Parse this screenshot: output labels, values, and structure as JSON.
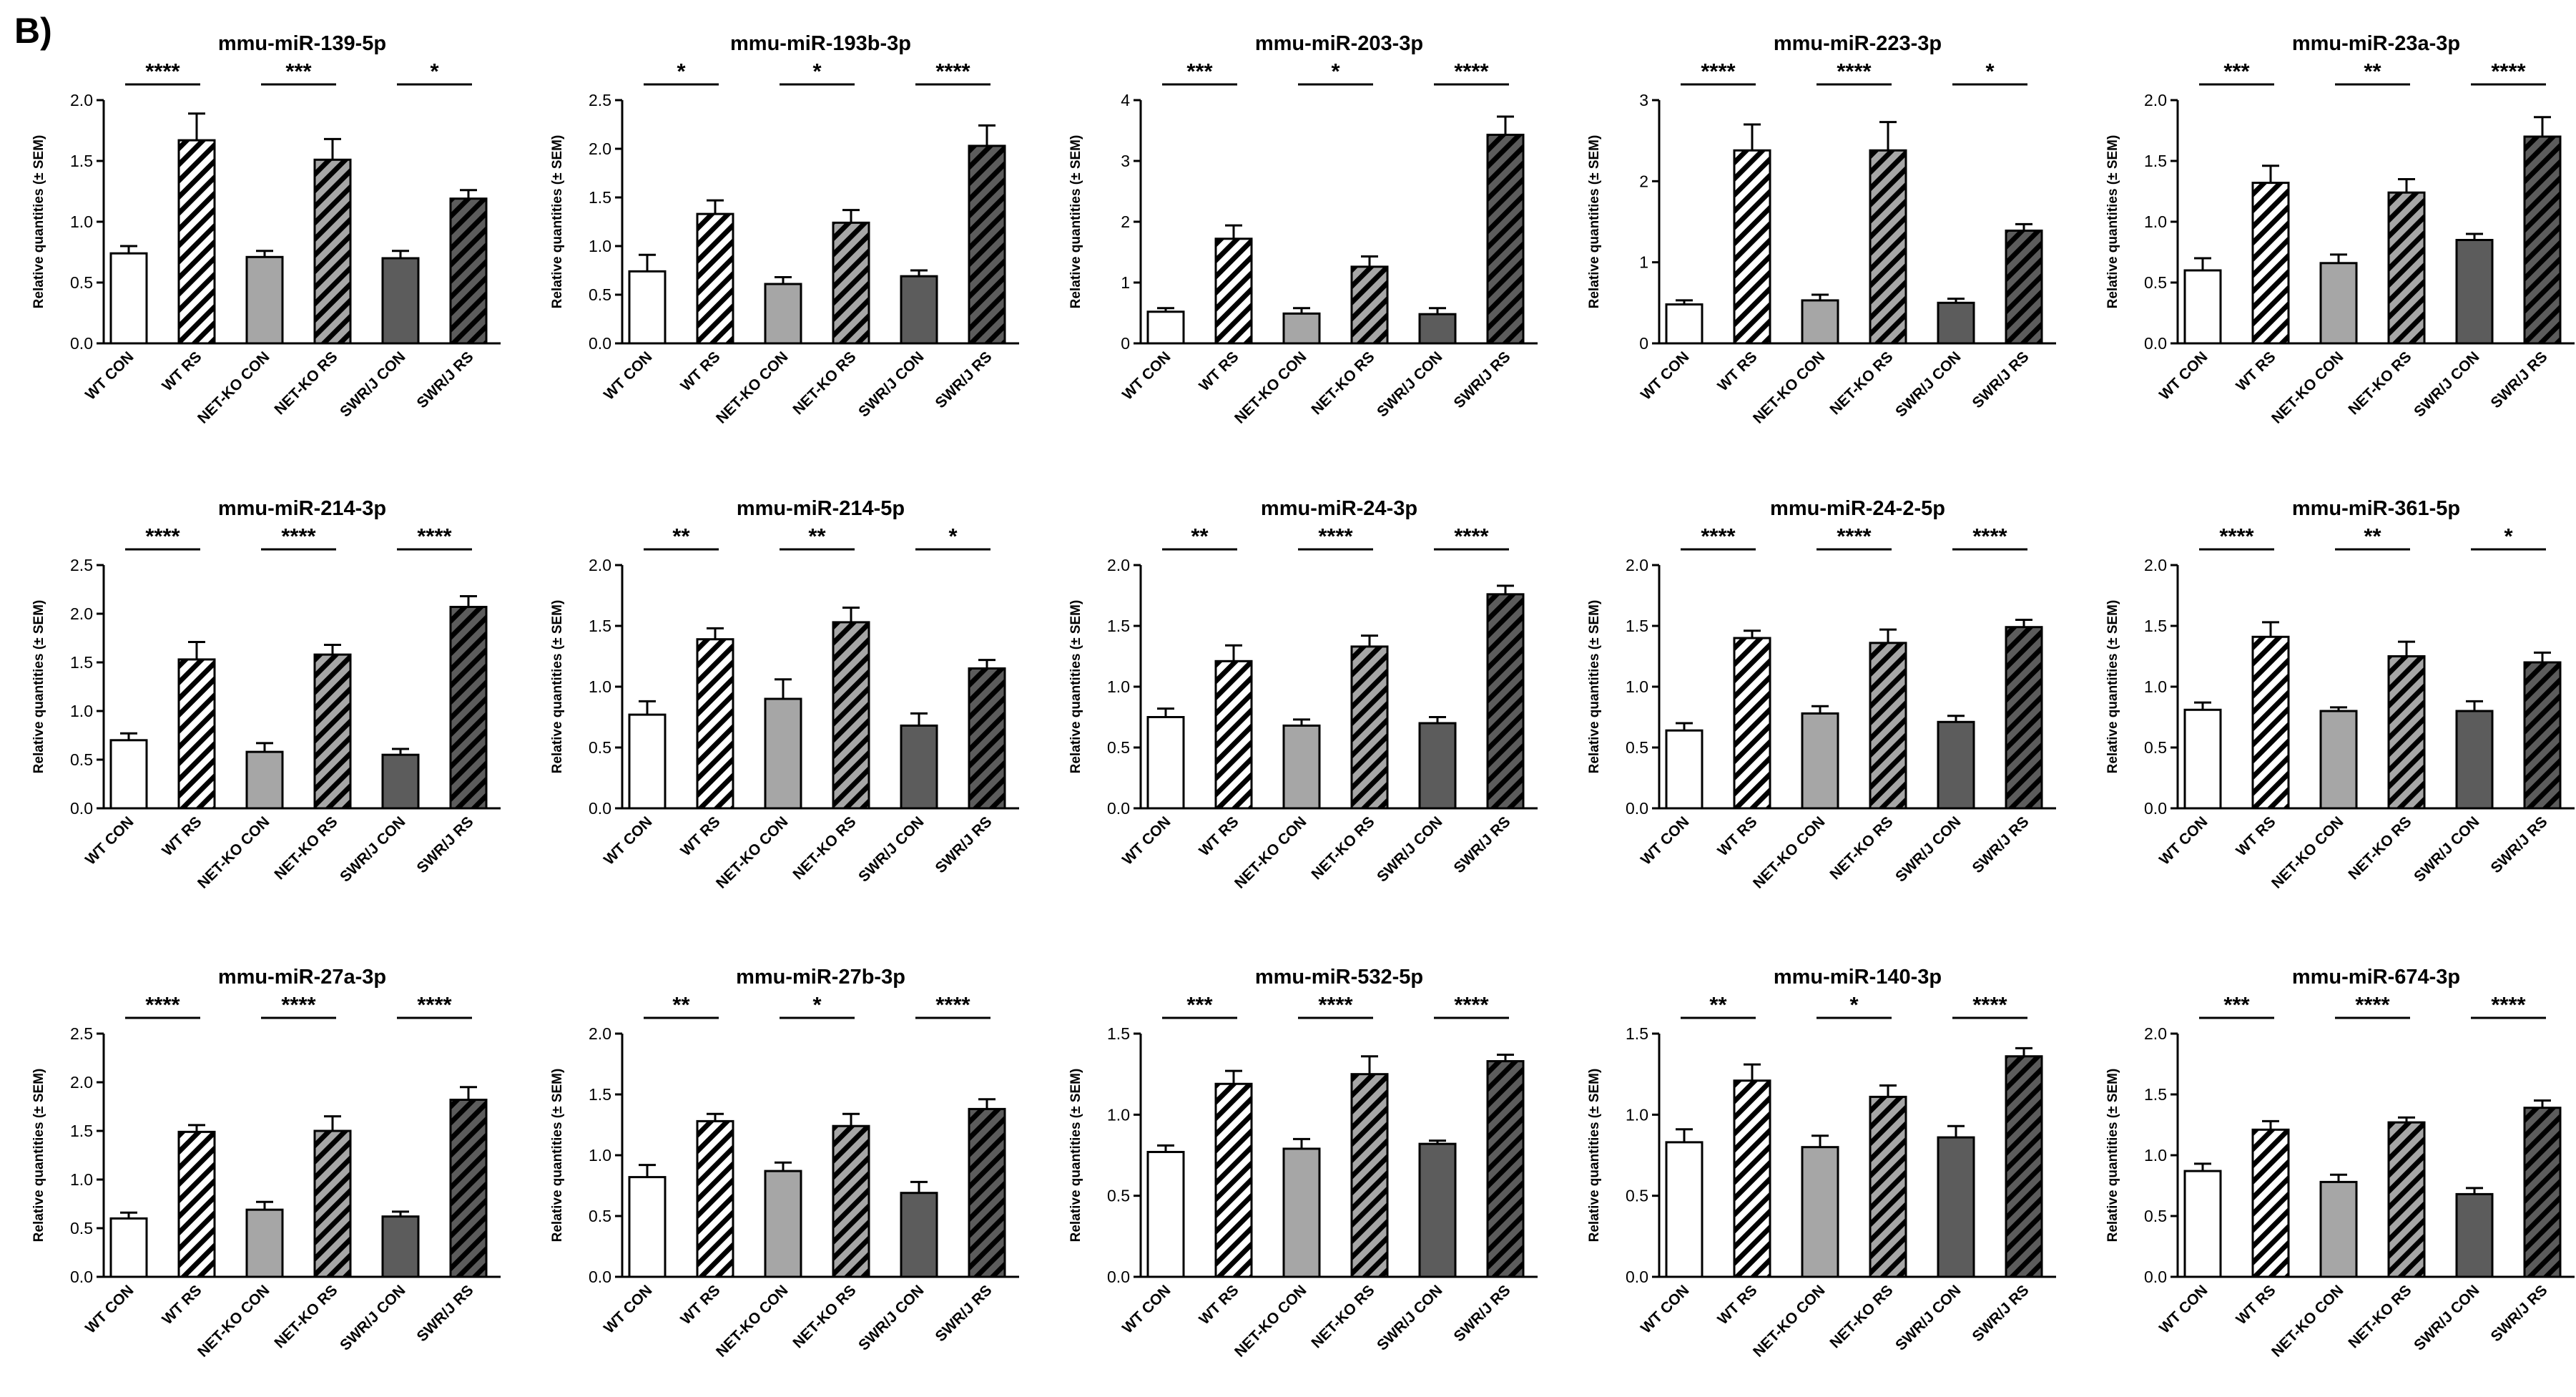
{
  "panel_label": "B)",
  "colors": {
    "wt_con": "#ffffff",
    "net_con": "#a6a6a6",
    "swr_con": "#5c5c5c",
    "wt_rs_stripe": "#ffffff",
    "net_rs_stripe": "#a6a6a6",
    "swr_rs_stripe": "#5c5c5c",
    "stroke": "#000000"
  },
  "categories": [
    "WT CON",
    "WT RS",
    "NET-KO CON",
    "NET-KO RS",
    "SWR/J CON",
    "SWR/J RS"
  ],
  "ylabel": "Relative quantities (± SEM)",
  "chart_data": [
    {
      "type": "bar",
      "title": "mmu-miR-139-5p",
      "ylabel": "Relative quantities (± SEM)",
      "ylim": [
        0,
        2.0
      ],
      "ticks": [
        "0.0",
        "0.5",
        "1.0",
        "1.5",
        "2.0"
      ],
      "categories": [
        "WT CON",
        "WT RS",
        "NET-KO CON",
        "NET-KO RS",
        "SWR/J CON",
        "SWR/J RS"
      ],
      "values": [
        0.74,
        1.67,
        0.71,
        1.51,
        0.7,
        1.19
      ],
      "errors": [
        0.06,
        0.22,
        0.05,
        0.17,
        0.06,
        0.07
      ],
      "significance": [
        "****",
        "***",
        "*"
      ]
    },
    {
      "type": "bar",
      "title": "mmu-miR-193b-3p",
      "ylabel": "Relative quantities (± SEM)",
      "ylim": [
        0,
        2.5
      ],
      "ticks": [
        "0.0",
        "0.5",
        "1.0",
        "1.5",
        "2.0",
        "2.5"
      ],
      "categories": [
        "WT CON",
        "WT RS",
        "NET-KO CON",
        "NET-KO RS",
        "SWR/J CON",
        "SWR/J RS"
      ],
      "values": [
        0.74,
        1.33,
        0.61,
        1.24,
        0.69,
        2.03
      ],
      "errors": [
        0.17,
        0.14,
        0.07,
        0.13,
        0.06,
        0.21
      ],
      "significance": [
        "*",
        "*",
        "****"
      ]
    },
    {
      "type": "bar",
      "title": "mmu-miR-203-3p",
      "ylabel": "Relative quantities (± SEM)",
      "ylim": [
        0,
        4
      ],
      "ticks": [
        "0",
        "1",
        "2",
        "3",
        "4"
      ],
      "categories": [
        "WT CON",
        "WT RS",
        "NET-KO CON",
        "NET-KO RS",
        "SWR/J CON",
        "SWR/J RS"
      ],
      "values": [
        0.52,
        1.72,
        0.49,
        1.26,
        0.48,
        3.43
      ],
      "errors": [
        0.06,
        0.22,
        0.09,
        0.17,
        0.1,
        0.3
      ],
      "significance": [
        "***",
        "*",
        "****"
      ]
    },
    {
      "type": "bar",
      "title": "mmu-miR-223-3p",
      "ylabel": "Relative quantities (± SEM)",
      "ylim": [
        0,
        3
      ],
      "ticks": [
        "0",
        "1",
        "2",
        "3"
      ],
      "categories": [
        "WT CON",
        "WT RS",
        "NET-KO CON",
        "NET-KO RS",
        "SWR/J CON",
        "SWR/J RS"
      ],
      "values": [
        0.48,
        2.38,
        0.53,
        2.38,
        0.5,
        1.39
      ],
      "errors": [
        0.05,
        0.32,
        0.07,
        0.35,
        0.05,
        0.08
      ],
      "significance": [
        "****",
        "****",
        "*"
      ]
    },
    {
      "type": "bar",
      "title": "mmu-miR-23a-3p",
      "ylabel": "Relative quantities (± SEM)",
      "ylim": [
        0,
        2.0
      ],
      "ticks": [
        "0.0",
        "0.5",
        "1.0",
        "1.5",
        "2.0"
      ],
      "categories": [
        "WT CON",
        "WT RS",
        "NET-KO CON",
        "NET-KO RS",
        "SWR/J CON",
        "SWR/J RS"
      ],
      "values": [
        0.6,
        1.32,
        0.66,
        1.24,
        0.85,
        1.7
      ],
      "errors": [
        0.1,
        0.14,
        0.07,
        0.11,
        0.05,
        0.16
      ],
      "significance": [
        "***",
        "**",
        "****"
      ]
    },
    {
      "type": "bar",
      "title": "mmu-miR-214-3p",
      "ylabel": "Relative quantities (± SEM)",
      "ylim": [
        0,
        2.5
      ],
      "ticks": [
        "0.0",
        "0.5",
        "1.0",
        "1.5",
        "2.0",
        "2.5"
      ],
      "categories": [
        "WT CON",
        "WT RS",
        "NET-KO CON",
        "NET-KO RS",
        "SWR/J CON",
        "SWR/J RS"
      ],
      "values": [
        0.7,
        1.53,
        0.58,
        1.58,
        0.55,
        2.07
      ],
      "errors": [
        0.07,
        0.18,
        0.09,
        0.1,
        0.06,
        0.11
      ],
      "significance": [
        "****",
        "****",
        "****"
      ]
    },
    {
      "type": "bar",
      "title": "mmu-miR-214-5p",
      "ylabel": "Relative quantities (± SEM)",
      "ylim": [
        0,
        2.0
      ],
      "ticks": [
        "0.0",
        "0.5",
        "1.0",
        "1.5",
        "2.0"
      ],
      "categories": [
        "WT CON",
        "WT RS",
        "NET-KO CON",
        "NET-KO RS",
        "SWR/J CON",
        "SWR/J RS"
      ],
      "values": [
        0.77,
        1.39,
        0.9,
        1.53,
        0.68,
        1.15
      ],
      "errors": [
        0.11,
        0.09,
        0.16,
        0.12,
        0.1,
        0.07
      ],
      "significance": [
        "**",
        "**",
        "*"
      ]
    },
    {
      "type": "bar",
      "title": "mmu-miR-24-3p",
      "ylabel": "Relative quantities (± SEM)",
      "ylim": [
        0,
        2.0
      ],
      "ticks": [
        "0.0",
        "0.5",
        "1.0",
        "1.5",
        "2.0"
      ],
      "categories": [
        "WT CON",
        "WT RS",
        "NET-KO CON",
        "NET-KO RS",
        "SWR/J CON",
        "SWR/J RS"
      ],
      "values": [
        0.75,
        1.21,
        0.68,
        1.33,
        0.7,
        1.76
      ],
      "errors": [
        0.07,
        0.13,
        0.05,
        0.09,
        0.05,
        0.07
      ],
      "significance": [
        "**",
        "****",
        "****"
      ]
    },
    {
      "type": "bar",
      "title": "mmu-miR-24-2-5p",
      "ylabel": "Relative quantities (± SEM)",
      "ylim": [
        0,
        2.0
      ],
      "ticks": [
        "0.0",
        "0.5",
        "1.0",
        "1.5",
        "2.0"
      ],
      "categories": [
        "WT CON",
        "WT RS",
        "NET-KO CON",
        "NET-KO RS",
        "SWR/J CON",
        "SWR/J RS"
      ],
      "values": [
        0.64,
        1.4,
        0.78,
        1.36,
        0.71,
        1.49
      ],
      "errors": [
        0.06,
        0.06,
        0.06,
        0.11,
        0.05,
        0.06
      ],
      "significance": [
        "****",
        "****",
        "****"
      ]
    },
    {
      "type": "bar",
      "title": "mmu-miR-361-5p",
      "ylabel": "Relative quantities (± SEM)",
      "ylim": [
        0,
        2.0
      ],
      "ticks": [
        "0.0",
        "0.5",
        "1.0",
        "1.5",
        "2.0"
      ],
      "categories": [
        "WT CON",
        "WT RS",
        "NET-KO CON",
        "NET-KO RS",
        "SWR/J CON",
        "SWR/J RS"
      ],
      "values": [
        0.81,
        1.41,
        0.8,
        1.25,
        0.8,
        1.2
      ],
      "errors": [
        0.06,
        0.12,
        0.03,
        0.12,
        0.08,
        0.08
      ],
      "significance": [
        "****",
        "**",
        "*"
      ]
    },
    {
      "type": "bar",
      "title": "mmu-miR-27a-3p",
      "ylabel": "Relative quantities (± SEM)",
      "ylim": [
        0,
        2.5
      ],
      "ticks": [
        "0.0",
        "0.5",
        "1.0",
        "1.5",
        "2.0",
        "2.5"
      ],
      "categories": [
        "WT CON",
        "WT RS",
        "NET-KO CON",
        "NET-KO RS",
        "SWR/J CON",
        "SWR/J RS"
      ],
      "values": [
        0.6,
        1.49,
        0.69,
        1.5,
        0.62,
        1.82
      ],
      "errors": [
        0.06,
        0.07,
        0.08,
        0.15,
        0.05,
        0.13
      ],
      "significance": [
        "****",
        "****",
        "****"
      ]
    },
    {
      "type": "bar",
      "title": "mmu-miR-27b-3p",
      "ylabel": "Relative quantities (± SEM)",
      "ylim": [
        0,
        2.0
      ],
      "ticks": [
        "0.0",
        "0.5",
        "1.0",
        "1.5",
        "2.0"
      ],
      "categories": [
        "WT CON",
        "WT RS",
        "NET-KO CON",
        "NET-KO RS",
        "SWR/J CON",
        "SWR/J RS"
      ],
      "values": [
        0.82,
        1.28,
        0.87,
        1.24,
        0.69,
        1.38
      ],
      "errors": [
        0.1,
        0.06,
        0.07,
        0.1,
        0.09,
        0.08
      ],
      "significance": [
        "**",
        "*",
        "****"
      ]
    },
    {
      "type": "bar",
      "title": "mmu-miR-532-5p",
      "ylabel": "Relative quantities (± SEM)",
      "ylim": [
        0,
        1.5
      ],
      "ticks": [
        "0.0",
        "0.5",
        "1.0",
        "1.5"
      ],
      "categories": [
        "WT CON",
        "WT RS",
        "NET-KO CON",
        "NET-KO RS",
        "SWR/J CON",
        "SWR/J RS"
      ],
      "values": [
        0.77,
        1.19,
        0.79,
        1.25,
        0.82,
        1.33
      ],
      "errors": [
        0.04,
        0.08,
        0.06,
        0.11,
        0.02,
        0.04
      ],
      "significance": [
        "***",
        "****",
        "****"
      ]
    },
    {
      "type": "bar",
      "title": "mmu-miR-140-3p",
      "ylabel": "Relative quantities (± SEM)",
      "ylim": [
        0,
        1.5
      ],
      "ticks": [
        "0.0",
        "0.5",
        "1.0",
        "1.5"
      ],
      "categories": [
        "WT CON",
        "WT RS",
        "NET-KO CON",
        "NET-KO RS",
        "SWR/J CON",
        "SWR/J RS"
      ],
      "values": [
        0.83,
        1.21,
        0.8,
        1.11,
        0.86,
        1.36
      ],
      "errors": [
        0.08,
        0.1,
        0.07,
        0.07,
        0.07,
        0.05
      ],
      "significance": [
        "**",
        "*",
        "****"
      ]
    },
    {
      "type": "bar",
      "title": "mmu-miR-674-3p",
      "ylabel": "Relative quantities (± SEM)",
      "ylim": [
        0,
        2.0
      ],
      "ticks": [
        "0.0",
        "0.5",
        "1.0",
        "1.5",
        "2.0"
      ],
      "categories": [
        "WT CON",
        "WT RS",
        "NET-KO CON",
        "NET-KO RS",
        "SWR/J CON",
        "SWR/J RS"
      ],
      "values": [
        0.87,
        1.21,
        0.78,
        1.27,
        0.68,
        1.39
      ],
      "errors": [
        0.06,
        0.07,
        0.06,
        0.04,
        0.05,
        0.06
      ],
      "significance": [
        "***",
        "****",
        "****"
      ]
    }
  ]
}
